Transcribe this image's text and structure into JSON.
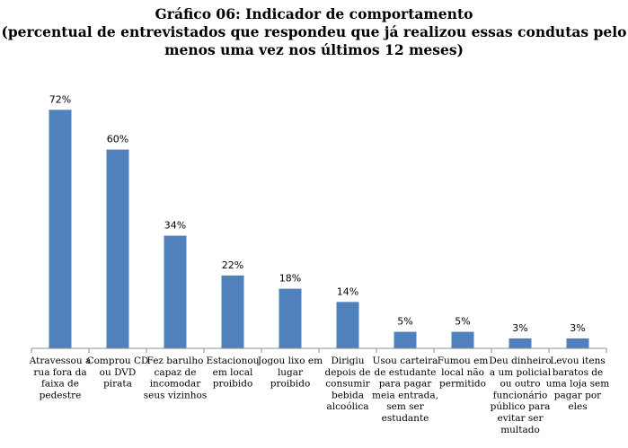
{
  "chart_data": {
    "type": "bar",
    "title": "Gráfico 06: Indicador de comportamento",
    "subtitle_lines": [
      "(percentual de entrevistados que respondeu que já realizou essas condutas pelo",
      "menos uma vez nos últimos 12 meses)"
    ],
    "categories": [
      [
        "Atravessou a",
        "rua fora da",
        "faixa de",
        "pedestre"
      ],
      [
        "Comprou CD",
        "ou DVD",
        "pirata"
      ],
      [
        "Fez barulho",
        "capaz de",
        "incomodar",
        "seus vizinhos"
      ],
      [
        "Estacionou",
        "em local",
        "proibido"
      ],
      [
        "Jogou lixo em",
        "lugar",
        "proibido"
      ],
      [
        "Dirigiu",
        "depois de",
        "consumir",
        "bebida",
        "alcoólica"
      ],
      [
        "Usou carteira",
        "de estudante",
        "para pagar",
        "meia entrada,",
        "sem ser",
        "estudante"
      ],
      [
        "Fumou em",
        "local não",
        "permitido"
      ],
      [
        "Deu dinheiro",
        "a um policial",
        "ou outro",
        "funcionário",
        "público para",
        "evitar ser",
        "multado"
      ],
      [
        "Levou itens",
        "baratos de",
        "uma loja sem",
        "pagar por",
        "eles"
      ]
    ],
    "values": [
      72,
      60,
      34,
      22,
      18,
      14,
      5,
      5,
      3,
      3
    ],
    "value_labels": [
      "72%",
      "60%",
      "34%",
      "22%",
      "18%",
      "14%",
      "5%",
      "5%",
      "3%",
      "3%"
    ],
    "ylim": [
      0,
      80
    ],
    "bar_color": "#4f81bd",
    "grid": false,
    "legend": "none"
  }
}
